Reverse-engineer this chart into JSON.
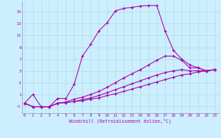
{
  "xlabel": "Windchill (Refroidissement éolien,°C)",
  "bg_color": "#cceeff",
  "line_color": "#aa00aa",
  "grid_color": "#aadddd",
  "spine_color": "#9999bb",
  "x_ticks": [
    0,
    1,
    2,
    3,
    4,
    5,
    6,
    7,
    8,
    9,
    10,
    11,
    12,
    13,
    14,
    15,
    16,
    17,
    18,
    19,
    20,
    21,
    22,
    23
  ],
  "y_ticks": [
    -1,
    1,
    3,
    5,
    7,
    9,
    11,
    13,
    15
  ],
  "xlim": [
    -0.3,
    23.5
  ],
  "ylim": [
    -2.2,
    16.8
  ],
  "line1_x": [
    0,
    1,
    2,
    3,
    4,
    5,
    6,
    7,
    8,
    9,
    10,
    11,
    12,
    13,
    14,
    15,
    16,
    17,
    18,
    19,
    20,
    21,
    22,
    23
  ],
  "line1_y": [
    -0.5,
    1.0,
    -1.1,
    -1.1,
    0.3,
    0.3,
    2.7,
    7.5,
    9.5,
    11.8,
    13.2,
    15.2,
    15.6,
    15.8,
    16.0,
    16.1,
    16.1,
    11.8,
    8.5,
    7.0,
    6.0,
    5.5,
    5.0,
    5.2
  ],
  "line2_x": [
    0,
    1,
    2,
    3,
    4,
    5,
    6,
    7,
    8,
    9,
    10,
    11,
    12,
    13,
    14,
    15,
    16,
    17,
    18,
    19,
    20,
    21,
    22,
    23
  ],
  "line2_y": [
    -0.5,
    -1.1,
    -1.1,
    -1.1,
    -0.5,
    -0.3,
    0.2,
    0.5,
    1.0,
    1.5,
    2.2,
    3.0,
    3.8,
    4.5,
    5.2,
    6.0,
    6.8,
    7.5,
    7.5,
    6.8,
    5.5,
    5.5,
    5.0,
    5.2
  ],
  "line3_x": [
    0,
    1,
    2,
    3,
    4,
    5,
    6,
    7,
    8,
    9,
    10,
    11,
    12,
    13,
    14,
    15,
    16,
    17,
    18,
    19,
    20,
    21,
    22,
    23
  ],
  "line3_y": [
    -0.5,
    -1.1,
    -1.1,
    -1.1,
    -0.5,
    -0.4,
    -0.2,
    0.1,
    0.4,
    0.8,
    1.3,
    1.8,
    2.3,
    2.8,
    3.3,
    3.8,
    4.3,
    4.7,
    5.0,
    5.2,
    5.0,
    5.0,
    5.0,
    5.2
  ],
  "line4_x": [
    0,
    1,
    2,
    3,
    4,
    5,
    6,
    7,
    8,
    9,
    10,
    11,
    12,
    13,
    14,
    15,
    16,
    17,
    18,
    19,
    20,
    21,
    22,
    23
  ],
  "line4_y": [
    -0.5,
    -1.1,
    -1.1,
    -1.1,
    -0.5,
    -0.4,
    -0.2,
    -0.1,
    0.2,
    0.4,
    0.8,
    1.1,
    1.5,
    1.9,
    2.3,
    2.7,
    3.1,
    3.5,
    3.9,
    4.3,
    4.5,
    4.8,
    5.0,
    5.2
  ]
}
